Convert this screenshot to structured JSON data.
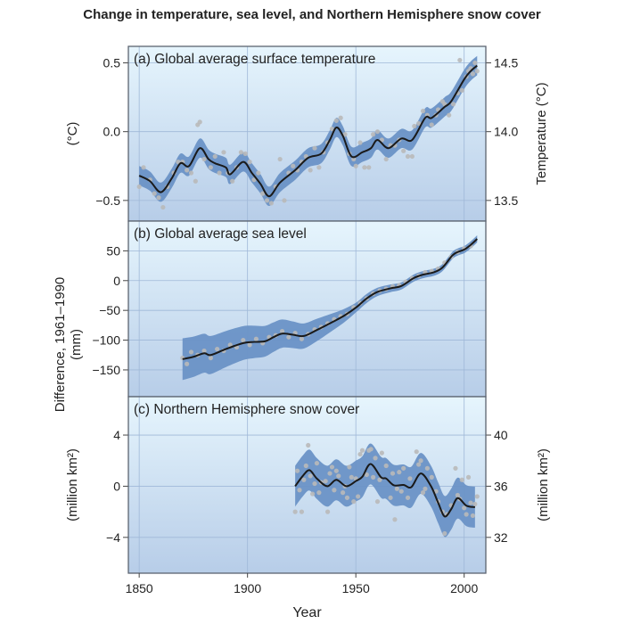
{
  "title": "Change in temperature, sea level, and Northern Hemisphere snow cover",
  "chart_data": [
    {
      "type": "line",
      "panel_label": "(a) Global average surface temperature",
      "ylabel_left": "(°C)",
      "ylabel_right": "Temperature (°C)",
      "xlim": [
        1845,
        2010
      ],
      "ylim": [
        -0.65,
        0.62
      ],
      "yticks_left": [
        {
          "v": 0.5,
          "label": "0.5"
        },
        {
          "v": 0.0,
          "label": "0.0"
        },
        {
          "v": -0.5,
          "label": "−0.5"
        }
      ],
      "yticks_right": [
        {
          "v": 0.5,
          "label": "14.5"
        },
        {
          "v": 0.0,
          "label": "14.0"
        },
        {
          "v": -0.5,
          "label": "13.5"
        }
      ],
      "grid": true,
      "smoothed": [
        [
          1850,
          -0.32
        ],
        [
          1855,
          -0.36
        ],
        [
          1860,
          -0.44
        ],
        [
          1865,
          -0.34
        ],
        [
          1869,
          -0.23
        ],
        [
          1873,
          -0.25
        ],
        [
          1878,
          -0.12
        ],
        [
          1882,
          -0.2
        ],
        [
          1885,
          -0.23
        ],
        [
          1890,
          -0.26
        ],
        [
          1892,
          -0.31
        ],
        [
          1898,
          -0.22
        ],
        [
          1902,
          -0.3
        ],
        [
          1906,
          -0.38
        ],
        [
          1910,
          -0.47
        ],
        [
          1915,
          -0.37
        ],
        [
          1922,
          -0.28
        ],
        [
          1928,
          -0.19
        ],
        [
          1934,
          -0.16
        ],
        [
          1938,
          -0.06
        ],
        [
          1941,
          0.03
        ],
        [
          1944,
          -0.03
        ],
        [
          1948,
          -0.18
        ],
        [
          1953,
          -0.15
        ],
        [
          1957,
          -0.12
        ],
        [
          1960,
          -0.06
        ],
        [
          1965,
          -0.12
        ],
        [
          1971,
          -0.05
        ],
        [
          1976,
          -0.06
        ],
        [
          1982,
          0.1
        ],
        [
          1985,
          0.1
        ],
        [
          1991,
          0.18
        ],
        [
          1994,
          0.22
        ],
        [
          2000,
          0.38
        ],
        [
          2003,
          0.44
        ],
        [
          2006,
          0.48
        ]
      ],
      "uncertainty": 0.07,
      "observations": [
        [
          1850,
          -0.4
        ],
        [
          1852,
          -0.26
        ],
        [
          1855,
          -0.35
        ],
        [
          1857,
          -0.45
        ],
        [
          1859,
          -0.48
        ],
        [
          1861,
          -0.55
        ],
        [
          1863,
          -0.4
        ],
        [
          1866,
          -0.3
        ],
        [
          1868,
          -0.22
        ],
        [
          1870,
          -0.22
        ],
        [
          1872,
          -0.28
        ],
        [
          1874,
          -0.3
        ],
        [
          1876,
          -0.36
        ],
        [
          1877,
          0.05
        ],
        [
          1878,
          0.07
        ],
        [
          1880,
          -0.2
        ],
        [
          1883,
          -0.26
        ],
        [
          1885,
          -0.18
        ],
        [
          1887,
          -0.3
        ],
        [
          1889,
          -0.15
        ],
        [
          1891,
          -0.3
        ],
        [
          1893,
          -0.36
        ],
        [
          1895,
          -0.26
        ],
        [
          1897,
          -0.15
        ],
        [
          1899,
          -0.16
        ],
        [
          1901,
          -0.22
        ],
        [
          1903,
          -0.35
        ],
        [
          1905,
          -0.3
        ],
        [
          1907,
          -0.45
        ],
        [
          1909,
          -0.5
        ],
        [
          1911,
          -0.52
        ],
        [
          1913,
          -0.4
        ],
        [
          1915,
          -0.2
        ],
        [
          1917,
          -0.5
        ],
        [
          1919,
          -0.3
        ],
        [
          1921,
          -0.25
        ],
        [
          1923,
          -0.28
        ],
        [
          1925,
          -0.22
        ],
        [
          1927,
          -0.18
        ],
        [
          1929,
          -0.28
        ],
        [
          1931,
          -0.12
        ],
        [
          1933,
          -0.26
        ],
        [
          1935,
          -0.15
        ],
        [
          1937,
          -0.08
        ],
        [
          1939,
          0.02
        ],
        [
          1941,
          0.08
        ],
        [
          1943,
          0.1
        ],
        [
          1945,
          -0.02
        ],
        [
          1947,
          -0.16
        ],
        [
          1949,
          -0.2
        ],
        [
          1950,
          -0.25
        ],
        [
          1952,
          -0.08
        ],
        [
          1954,
          -0.26
        ],
        [
          1956,
          -0.26
        ],
        [
          1958,
          -0.02
        ],
        [
          1960,
          0.0
        ],
        [
          1962,
          -0.06
        ],
        [
          1964,
          -0.2
        ],
        [
          1966,
          -0.1
        ],
        [
          1968,
          -0.1
        ],
        [
          1970,
          -0.06
        ],
        [
          1972,
          -0.14
        ],
        [
          1974,
          -0.18
        ],
        [
          1976,
          -0.18
        ],
        [
          1977,
          0.04
        ],
        [
          1979,
          0.06
        ],
        [
          1981,
          0.15
        ],
        [
          1983,
          0.12
        ],
        [
          1985,
          0.05
        ],
        [
          1987,
          0.12
        ],
        [
          1988,
          0.16
        ],
        [
          1990,
          0.22
        ],
        [
          1991,
          0.2
        ],
        [
          1993,
          0.12
        ],
        [
          1995,
          0.2
        ],
        [
          1997,
          0.28
        ],
        [
          1998,
          0.52
        ],
        [
          1999,
          0.3
        ],
        [
          2001,
          0.4
        ],
        [
          2002,
          0.44
        ],
        [
          2003,
          0.46
        ],
        [
          2004,
          0.42
        ],
        [
          2005,
          0.5
        ],
        [
          2006,
          0.44
        ]
      ]
    },
    {
      "type": "line",
      "panel_label": "(b) Global average sea level",
      "ylabel_left": "Difference, 1961–1990\n(mm)",
      "xlim": [
        1845,
        2010
      ],
      "ylim": [
        -195,
        100
      ],
      "yticks_left": [
        {
          "v": 50,
          "label": "50"
        },
        {
          "v": 0,
          "label": "0"
        },
        {
          "v": -50,
          "label": "−50"
        },
        {
          "v": -100,
          "label": "−100"
        },
        {
          "v": -150,
          "label": "−150"
        }
      ],
      "grid": true,
      "smoothed": [
        [
          1870,
          -132
        ],
        [
          1875,
          -128
        ],
        [
          1880,
          -122
        ],
        [
          1883,
          -125
        ],
        [
          1890,
          -115
        ],
        [
          1898,
          -105
        ],
        [
          1903,
          -103
        ],
        [
          1908,
          -102
        ],
        [
          1912,
          -95
        ],
        [
          1916,
          -89
        ],
        [
          1921,
          -91
        ],
        [
          1926,
          -93
        ],
        [
          1932,
          -83
        ],
        [
          1939.5,
          -69
        ],
        [
          1945,
          -58
        ],
        [
          1950.5,
          -44
        ],
        [
          1955,
          -30
        ],
        [
          1960,
          -19
        ],
        [
          1966,
          -13
        ],
        [
          1971,
          -9
        ],
        [
          1976.6,
          4
        ],
        [
          1981,
          10
        ],
        [
          1986,
          14
        ],
        [
          1990,
          22
        ],
        [
          1994.5,
          42
        ],
        [
          1997,
          48
        ],
        [
          2000,
          52
        ],
        [
          2003,
          60
        ],
        [
          2006,
          70
        ]
      ],
      "uncertainty": [
        [
          1870,
          35
        ],
        [
          1900,
          28
        ],
        [
          1930,
          20
        ],
        [
          1950,
          8
        ],
        [
          1970,
          6
        ],
        [
          2000,
          6
        ]
      ],
      "observations": [
        [
          1870,
          -130
        ],
        [
          1872,
          -140
        ],
        [
          1874,
          -120
        ],
        [
          1877,
          -125
        ],
        [
          1880,
          -118
        ],
        [
          1883,
          -130
        ],
        [
          1886,
          -115
        ],
        [
          1889,
          -118
        ],
        [
          1892,
          -108
        ],
        [
          1895,
          -112
        ],
        [
          1898,
          -100
        ],
        [
          1901,
          -108
        ],
        [
          1904,
          -98
        ],
        [
          1907,
          -105
        ],
        [
          1910,
          -95
        ],
        [
          1913,
          -92
        ],
        [
          1916,
          -85
        ],
        [
          1919,
          -95
        ],
        [
          1922,
          -88
        ],
        [
          1925,
          -98
        ],
        [
          1928,
          -90
        ],
        [
          1931,
          -82
        ],
        [
          1934,
          -78
        ],
        [
          1937,
          -72
        ],
        [
          1940,
          -65
        ],
        [
          1943,
          -60
        ],
        [
          1946,
          -56
        ],
        [
          1949,
          -45
        ],
        [
          1952,
          -38
        ],
        [
          1955,
          -30
        ],
        [
          1958,
          -22
        ],
        [
          1961,
          -17
        ],
        [
          1964,
          -14
        ],
        [
          1967,
          -10
        ],
        [
          1970,
          -8
        ],
        [
          1973,
          -2
        ],
        [
          1976,
          4
        ],
        [
          1979,
          8
        ],
        [
          1982,
          14
        ],
        [
          1985,
          16
        ],
        [
          1988,
          20
        ],
        [
          1991,
          30
        ],
        [
          1994,
          40
        ],
        [
          1997,
          48
        ],
        [
          2000,
          54
        ],
        [
          2003,
          58
        ]
      ]
    },
    {
      "type": "line",
      "panel_label": "(c) Northern Hemisphere snow cover",
      "ylabel_left": "(million km²)",
      "ylabel_right": "(million km²)",
      "xlabel": "Year",
      "xlim": [
        1845,
        2010
      ],
      "ylim": [
        -6.8,
        7.0
      ],
      "xticks": [
        1850,
        1900,
        1950,
        2000
      ],
      "yticks_left": [
        {
          "v": 4,
          "label": "4"
        },
        {
          "v": 0,
          "label": "0"
        },
        {
          "v": -4,
          "label": "−4"
        }
      ],
      "yticks_right": [
        {
          "v": 4,
          "label": "40"
        },
        {
          "v": 0,
          "label": "36"
        },
        {
          "v": -4,
          "label": "32"
        }
      ],
      "grid": true,
      "smoothed": [
        [
          1922,
          0.0
        ],
        [
          1925.5,
          0.8
        ],
        [
          1928.6,
          1.26
        ],
        [
          1932,
          0.6
        ],
        [
          1936.8,
          0.0
        ],
        [
          1941,
          0.5
        ],
        [
          1945.6,
          0.0
        ],
        [
          1950,
          0.4
        ],
        [
          1953,
          0.74
        ],
        [
          1956.8,
          1.74
        ],
        [
          1961.6,
          0.7
        ],
        [
          1964,
          0.6
        ],
        [
          1967.6,
          0.07
        ],
        [
          1972,
          0.1
        ],
        [
          1975.6,
          -0.07
        ],
        [
          1980,
          1.0
        ],
        [
          1984.7,
          0.0
        ],
        [
          1988,
          -1.3
        ],
        [
          1991,
          -2.36
        ],
        [
          1994,
          -1.8
        ],
        [
          1997,
          -0.93
        ],
        [
          2001,
          -1.52
        ],
        [
          2005,
          -1.64
        ]
      ],
      "uncertainty": 1.6,
      "observations": [
        [
          1922,
          -2.0
        ],
        [
          1923,
          1.2
        ],
        [
          1924,
          -0.3
        ],
        [
          1925,
          -2.0
        ],
        [
          1926,
          0.5
        ],
        [
          1927,
          1.6
        ],
        [
          1928,
          3.2
        ],
        [
          1929,
          0.8
        ],
        [
          1930,
          -0.6
        ],
        [
          1931,
          0.2
        ],
        [
          1932,
          1.8
        ],
        [
          1933,
          -0.5
        ],
        [
          1934,
          0.3
        ],
        [
          1936,
          0.4
        ],
        [
          1937,
          -2.0
        ],
        [
          1938,
          1.0
        ],
        [
          1939,
          1.5
        ],
        [
          1940,
          -0.3
        ],
        [
          1941,
          1.2
        ],
        [
          1942,
          0.8
        ],
        [
          1944,
          -0.5
        ],
        [
          1945,
          0.0
        ],
        [
          1946,
          -0.9
        ],
        [
          1947,
          1.5
        ],
        [
          1948,
          0.7
        ],
        [
          1949,
          -1.2
        ],
        [
          1950,
          0.6
        ],
        [
          1951,
          -0.8
        ],
        [
          1952,
          2.5
        ],
        [
          1953,
          2.8
        ],
        [
          1955,
          0.9
        ],
        [
          1956,
          2.8
        ],
        [
          1957,
          2.9
        ],
        [
          1958,
          0.7
        ],
        [
          1959,
          2.2
        ],
        [
          1960,
          -1.2
        ],
        [
          1961,
          0.5
        ],
        [
          1962,
          2.6
        ],
        [
          1964,
          1.6
        ],
        [
          1966,
          -0.9
        ],
        [
          1967,
          1.0
        ],
        [
          1968,
          -2.6
        ],
        [
          1969,
          -0.2
        ],
        [
          1970,
          1.1
        ],
        [
          1971,
          -0.4
        ],
        [
          1972,
          1.4
        ],
        [
          1974,
          -0.9
        ],
        [
          1975,
          0.6
        ],
        [
          1978,
          2.7
        ],
        [
          1979,
          1.7
        ],
        [
          1980,
          2.0
        ],
        [
          1981,
          -0.5
        ],
        [
          1982,
          -0.2
        ],
        [
          1983,
          1.4
        ],
        [
          1985,
          0.7
        ],
        [
          1987,
          -0.4
        ],
        [
          1988,
          -1.2
        ],
        [
          1990,
          -2.0
        ],
        [
          1991,
          -3.7
        ],
        [
          1992,
          -2.2
        ],
        [
          1994,
          -1.5
        ],
        [
          1996,
          1.4
        ],
        [
          1997,
          -0.7
        ],
        [
          1998,
          -1.0
        ],
        [
          1999,
          0.5
        ],
        [
          2000,
          -1.7
        ],
        [
          2001,
          -2.2
        ],
        [
          2002,
          0.7
        ],
        [
          2003,
          -1.3
        ],
        [
          2004,
          -2.3
        ],
        [
          2005,
          -1.4
        ],
        [
          2006,
          -0.8
        ]
      ]
    }
  ],
  "colors": {
    "band": "#6a92c6",
    "line": "#1a1a1a",
    "dots": "#b9b9b9",
    "bg_top": "#e6f5fd",
    "bg_bottom": "#b7cde8",
    "grid": "#9fb8d8",
    "frame": "#5c6470"
  }
}
